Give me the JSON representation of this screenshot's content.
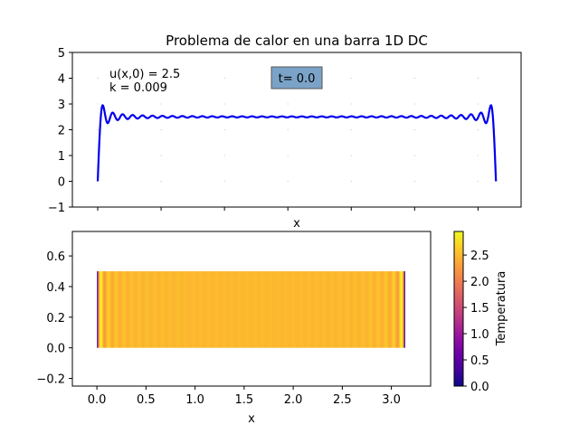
{
  "chart_data": [
    {
      "type": "line",
      "title": "Problema de calor en una barra 1D DC",
      "xlabel": "x",
      "ylabel": "",
      "xlim": [
        -0.2,
        3.34
      ],
      "ylim": [
        -1,
        5
      ],
      "yticks": [
        -1,
        0,
        1,
        2,
        3,
        4,
        5
      ],
      "xticks_labeled": false,
      "grid": false,
      "annotations": {
        "initial_condition": "u(x,0) = 2.5",
        "k": "k = 0.009",
        "time_box": "t= 0.0"
      },
      "series": [
        {
          "color": "#0000ee",
          "u0": 2.5,
          "n_terms": 40,
          "x_start": 0.0,
          "x_end": 3.14159
        }
      ]
    },
    {
      "type": "heatmap",
      "xlabel": "x",
      "ylabel": "",
      "xlim": [
        -0.25,
        3.4
      ],
      "ylim": [
        -0.25,
        0.76
      ],
      "xticks": [
        0.0,
        0.5,
        1.0,
        1.5,
        2.0,
        2.5,
        3.0
      ],
      "yticks": [
        -0.2,
        0.0,
        0.2,
        0.4,
        0.6
      ],
      "extent": {
        "x": [
          0.0,
          3.14159
        ],
        "y": [
          0.0,
          0.5
        ]
      },
      "colormap": "plasma",
      "colorbar": {
        "label": "Temperatura",
        "range": [
          0.0,
          2.95
        ],
        "ticks": [
          0.0,
          0.5,
          1.0,
          1.5,
          2.0,
          2.5
        ]
      }
    }
  ]
}
